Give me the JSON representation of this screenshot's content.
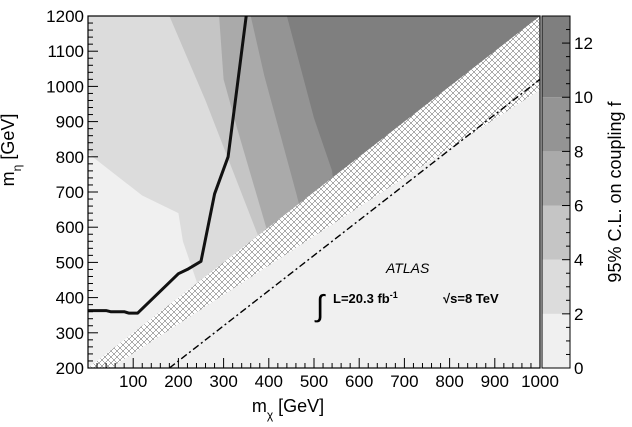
{
  "chart_data": {
    "type": "heatmap",
    "xlabel": "m_χ [GeV]",
    "ylabel": "m_η [GeV]",
    "zlabel": "95% C.L. on coupling f",
    "xlim": [
      0,
      1000
    ],
    "ylim": [
      200,
      1200
    ],
    "zlim": [
      0,
      13
    ],
    "x_ticks": [
      "100",
      "200",
      "300",
      "400",
      "500",
      "600",
      "700",
      "800",
      "900",
      "1000"
    ],
    "y_ticks": [
      "200",
      "300",
      "400",
      "500",
      "600",
      "700",
      "800",
      "900",
      "1000",
      "1100",
      "1200"
    ],
    "z_ticks": [
      "0",
      "2",
      "4",
      "6",
      "8",
      "10",
      "12"
    ],
    "grid": false,
    "colorbar": "right",
    "regions": [
      {
        "level": 2,
        "color": "#f0f0f0",
        "points": [
          [
            0,
            200
          ],
          [
            1000,
            200
          ],
          [
            1000,
            1200
          ],
          [
            0,
            1200
          ]
        ]
      },
      {
        "level": 4,
        "color": "#dcdcdc",
        "points": [
          [
            0,
            810
          ],
          [
            120,
            690
          ],
          [
            200,
            640
          ],
          [
            210,
            560
          ],
          [
            250,
            410
          ],
          [
            1000,
            1200
          ],
          [
            0,
            1200
          ]
        ]
      },
      {
        "level": 6,
        "color": "#c5c5c5",
        "points": [
          [
            180,
            1200
          ],
          [
            260,
            960
          ],
          [
            390,
            530
          ],
          [
            1000,
            1200
          ]
        ]
      },
      {
        "level": 8,
        "color": "#aaaaaa",
        "points": [
          [
            290,
            1200
          ],
          [
            300,
            1020
          ],
          [
            330,
            880
          ],
          [
            410,
            530
          ],
          [
            1000,
            1200
          ]
        ]
      },
      {
        "level": 10,
        "color": "#949494",
        "points": [
          [
            360,
            1200
          ],
          [
            390,
            1030
          ],
          [
            460,
            700
          ],
          [
            480,
            600
          ],
          [
            1000,
            1200
          ]
        ]
      },
      {
        "level": 12,
        "color": "#7f7f7f",
        "points": [
          [
            440,
            1200
          ],
          [
            500,
            910
          ],
          [
            540,
            760
          ],
          [
            550,
            640
          ],
          [
            1000,
            1200
          ]
        ]
      }
    ],
    "excluded_region": {
      "pattern": "crosshatch",
      "points": [
        [
          0,
          200
        ],
        [
          50,
          200
        ],
        [
          1000,
          990
        ],
        [
          1000,
          1200
        ]
      ]
    },
    "diagonal_line": {
      "style": "dash-dot",
      "points": [
        [
          180,
          200
        ],
        [
          1000,
          1020
        ]
      ]
    },
    "limit_contour": {
      "points": [
        [
          0,
          363
        ],
        [
          40,
          363
        ],
        [
          50,
          360
        ],
        [
          80,
          360
        ],
        [
          90,
          356
        ],
        [
          110,
          356
        ],
        [
          200,
          468
        ],
        [
          220,
          480
        ],
        [
          250,
          503
        ],
        [
          280,
          695
        ],
        [
          310,
          800
        ],
        [
          330,
          1000
        ],
        [
          340,
          1100
        ],
        [
          350,
          1200
        ]
      ]
    },
    "annotations": {
      "experiment": "ATLAS",
      "integral": "∫",
      "lumi": "L=20.3 fb",
      "lumi_exp": "-1",
      "sqrt": "√",
      "energy": "s=8 TeV"
    }
  }
}
